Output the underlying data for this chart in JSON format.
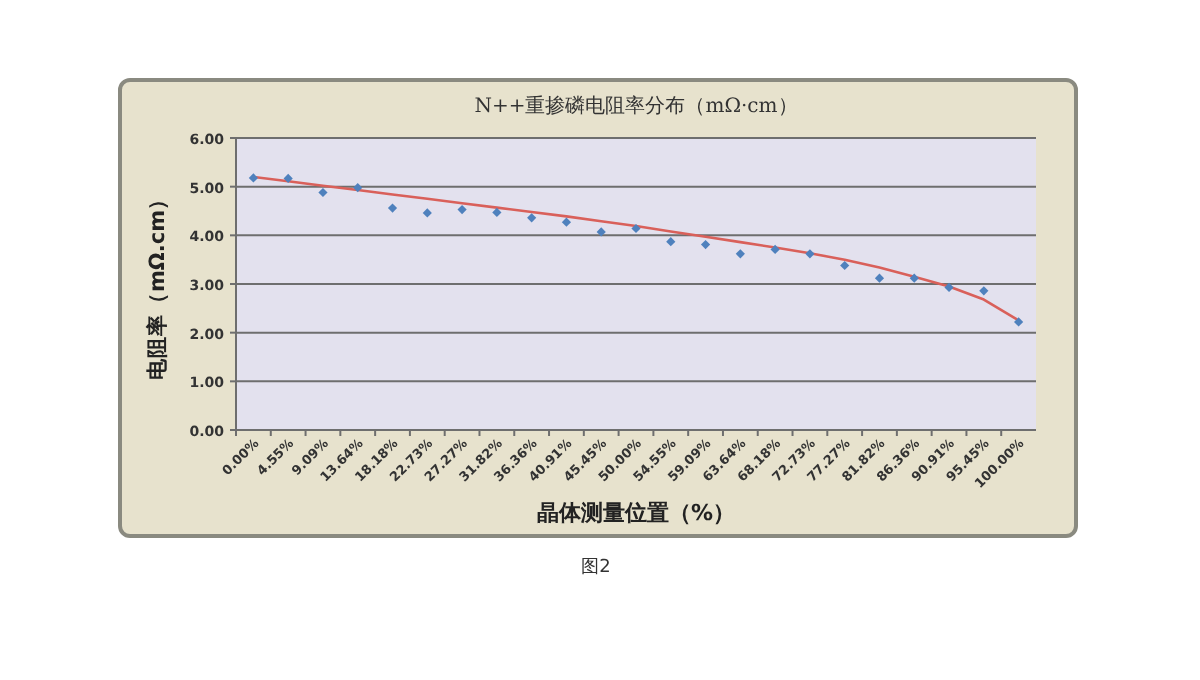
{
  "chart_data": {
    "type": "scatter",
    "title": "N++重掺磷电阻率分布（mΩ·cm）",
    "xlabel": "晶体测量位置（%）",
    "ylabel": "电阻率（mΩ.cm）",
    "categories": [
      "0.00%",
      "4.55%",
      "9.09%",
      "13.64%",
      "18.18%",
      "22.73%",
      "27.27%",
      "31.82%",
      "36.36%",
      "40.91%",
      "45.45%",
      "50.00%",
      "54.55%",
      "59.09%",
      "63.64%",
      "68.18%",
      "72.73%",
      "77.27%",
      "81.82%",
      "86.36%",
      "90.91%",
      "95.45%",
      "100.00%"
    ],
    "series": [
      {
        "marker": "diamond",
        "color": "#4f81bd",
        "values": [
          5.18,
          5.17,
          4.88,
          4.98,
          4.56,
          4.46,
          4.53,
          4.47,
          4.36,
          4.27,
          4.07,
          4.14,
          3.87,
          3.81,
          3.62,
          3.71,
          3.62,
          3.38,
          3.12,
          3.12,
          2.93,
          2.86,
          2.22
        ]
      },
      {
        "type": "line",
        "marker": "none",
        "color": "#d9605a",
        "values": [
          5.2,
          5.11,
          5.02,
          4.93,
          4.84,
          4.75,
          4.66,
          4.57,
          4.48,
          4.39,
          4.29,
          4.19,
          4.08,
          3.97,
          3.86,
          3.75,
          3.63,
          3.5,
          3.34,
          3.15,
          2.95,
          2.68,
          2.25
        ]
      }
    ],
    "ylim": [
      0,
      6
    ],
    "yticks": [
      {
        "value": 0,
        "label": "0.00"
      },
      {
        "value": 1,
        "label": "1.00"
      },
      {
        "value": 2,
        "label": "2.00"
      },
      {
        "value": 3,
        "label": "3.00"
      },
      {
        "value": 4,
        "label": "4.00"
      },
      {
        "value": 5,
        "label": "5.00"
      },
      {
        "value": 6,
        "label": "6.00"
      }
    ],
    "grid": "y",
    "annotations": [
      "图2"
    ]
  }
}
